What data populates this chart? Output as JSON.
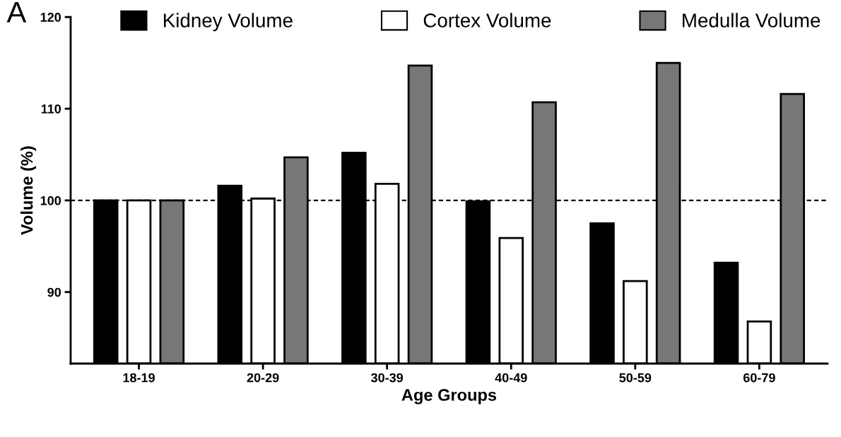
{
  "chart_data": {
    "type": "bar",
    "xlabel": "Age Groups",
    "ylabel": "Volume (%)",
    "annotations": [
      "A"
    ],
    "categories": [
      "18-19",
      "20-29",
      "30-39",
      "40-49",
      "50-59",
      "60-79"
    ],
    "series": [
      {
        "name": "Kidney Volume",
        "color": "#000000",
        "values": [
          100,
          101.6,
          105.2,
          99.9,
          97.5,
          93.2
        ]
      },
      {
        "name": "Cortex Volume",
        "color": "#ffffff",
        "values": [
          100,
          100.2,
          101.8,
          95.9,
          91.2,
          86.8
        ]
      },
      {
        "name": "Medulla Volume",
        "color": "#777777",
        "values": [
          100,
          104.7,
          114.7,
          110.7,
          115.0,
          111.6
        ]
      }
    ],
    "ylim": [
      82.2,
      120
    ],
    "yticks": [
      90,
      100,
      110,
      120
    ],
    "ref_lines": [
      {
        "axis": "y",
        "value": 100,
        "color": "#000000",
        "line_style": "dotted"
      }
    ],
    "grid": false,
    "legend": "top"
  }
}
